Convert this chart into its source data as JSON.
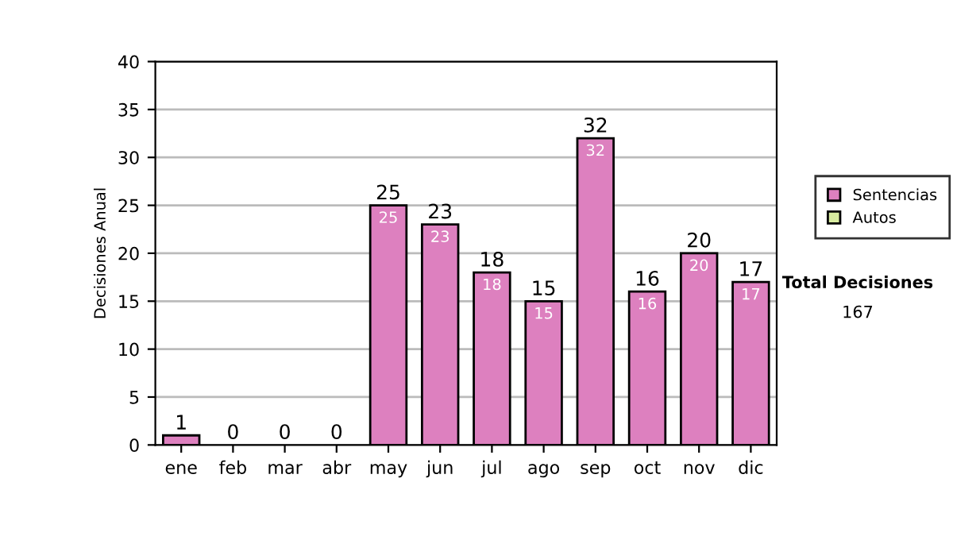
{
  "chart_data": {
    "type": "bar",
    "stacked": true,
    "ylabel": "Decisiones Anual",
    "categories": [
      "ene",
      "feb",
      "mar",
      "abr",
      "may",
      "jun",
      "jul",
      "ago",
      "sep",
      "oct",
      "nov",
      "dic"
    ],
    "series": [
      {
        "name": "Sentencias",
        "color": "#dd80bf",
        "values": [
          1,
          0,
          0,
          0,
          25,
          23,
          18,
          15,
          32,
          16,
          20,
          17
        ],
        "value_labels": [
          null,
          null,
          null,
          null,
          "25",
          "23",
          "18",
          "15",
          "32",
          "16",
          "20",
          "17"
        ]
      },
      {
        "name": "Autos",
        "color": "#d8eca0",
        "values": [
          0,
          0,
          0,
          0,
          0,
          0,
          0,
          0,
          0,
          0,
          0,
          0
        ]
      }
    ],
    "totals": [
      "1",
      "0",
      "0",
      "0",
      "25",
      "23",
      "18",
      "15",
      "32",
      "16",
      "20",
      "17"
    ],
    "ylim": [
      0,
      40
    ],
    "yticks": [
      0,
      5,
      10,
      15,
      20,
      25,
      30,
      35,
      40
    ],
    "grid": "y",
    "legend": "right",
    "annotations": [
      "Total Decisiones",
      "167"
    ]
  }
}
